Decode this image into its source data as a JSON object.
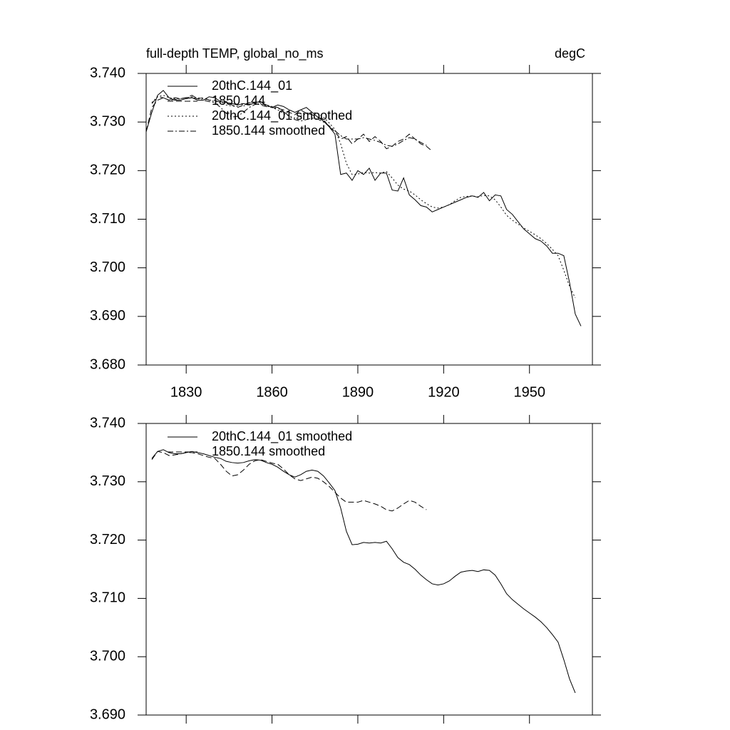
{
  "chart_data": [
    {
      "type": "line",
      "title": "full-depth TEMP, global_no_ms",
      "units": "degC",
      "x": [
        1816,
        1818,
        1820,
        1822,
        1824,
        1826,
        1828,
        1830,
        1832,
        1834,
        1836,
        1838,
        1840,
        1842,
        1844,
        1846,
        1848,
        1850,
        1852,
        1854,
        1856,
        1858,
        1860,
        1862,
        1864,
        1866,
        1868,
        1870,
        1872,
        1874,
        1876,
        1878,
        1880,
        1882,
        1884,
        1886,
        1888,
        1890,
        1892,
        1894,
        1896,
        1898,
        1900,
        1902,
        1904,
        1906,
        1908,
        1910,
        1912,
        1914,
        1916,
        1918,
        1920,
        1922,
        1924,
        1926,
        1928,
        1930,
        1932,
        1934,
        1936,
        1938,
        1940,
        1942,
        1944,
        1946,
        1948,
        1950,
        1952,
        1954,
        1956,
        1958,
        1960,
        1962,
        1964,
        1966,
        1968
      ],
      "xlim": [
        1816,
        1972
      ],
      "xticks": [
        1830,
        1860,
        1890,
        1920,
        1950
      ],
      "show_xtick_labels": true,
      "ylim": [
        3.68,
        3.74
      ],
      "yticks": [
        {
          "value": 3.68,
          "label": "3.680"
        },
        {
          "value": 3.69,
          "label": "3.690"
        },
        {
          "value": 3.7,
          "label": "3.700"
        },
        {
          "value": 3.71,
          "label": "3.710"
        },
        {
          "value": 3.72,
          "label": "3.720"
        },
        {
          "value": 3.73,
          "label": "3.730"
        },
        {
          "value": 3.74,
          "label": "3.740"
        }
      ],
      "legend": "upper left",
      "series": [
        {
          "name": "20thC.144_01",
          "color": "#000000",
          "style": "solid",
          "values": [
            3.728,
            3.732,
            3.7355,
            3.7365,
            3.735,
            3.7345,
            3.7345,
            3.7348,
            3.735,
            3.7345,
            3.7345,
            3.7352,
            3.735,
            3.7342,
            3.734,
            3.7338,
            3.7335,
            3.7338,
            3.7335,
            3.734,
            3.7342,
            3.7335,
            3.733,
            3.7335,
            3.7332,
            3.7325,
            3.732,
            3.7325,
            3.733,
            3.732,
            3.731,
            3.7302,
            3.729,
            3.7275,
            3.7192,
            3.7195,
            3.718,
            3.72,
            3.7192,
            3.7205,
            3.718,
            3.7195,
            3.7195,
            3.716,
            3.7158,
            3.7185,
            3.715,
            3.714,
            3.7128,
            3.7125,
            3.7115,
            3.712,
            3.7125,
            3.713,
            3.7135,
            3.714,
            3.7145,
            3.7148,
            3.7145,
            3.7155,
            3.7138,
            3.715,
            3.7148,
            3.712,
            3.711,
            3.7095,
            3.708,
            3.707,
            3.706,
            3.7055,
            3.7045,
            3.703,
            3.703,
            3.7025,
            3.697,
            3.6905,
            3.688
          ]
        },
        {
          "name": "1850.144",
          "color": "#000000",
          "style": "dash",
          "values": [
            3.728,
            3.733,
            3.7345,
            3.735,
            3.7345,
            3.735,
            3.7348,
            3.735,
            3.7355,
            3.7348,
            3.735,
            3.7345,
            3.7345,
            3.734,
            3.7342,
            3.7335,
            3.733,
            3.7335,
            3.734,
            3.7338,
            3.7335,
            3.7332,
            3.733,
            3.7328,
            3.7325,
            3.732,
            3.7315,
            3.7325,
            3.7318,
            3.7315,
            3.731,
            3.7305,
            3.729,
            3.728,
            3.7265,
            3.727,
            3.7255,
            3.7265,
            3.7275,
            3.726,
            3.727,
            3.726,
            3.7245,
            3.725,
            3.726,
            3.7265,
            3.7275,
            3.7265,
            3.7255,
            3.725,
            3.724,
            null,
            null,
            null,
            null,
            null,
            null,
            null,
            null,
            null,
            null,
            null,
            null,
            null,
            null,
            null,
            null,
            null,
            null,
            null,
            null,
            null,
            null,
            null,
            null,
            null,
            null
          ]
        },
        {
          "name": "20thC.144_01 smoothed",
          "color": "#000000",
          "style": "dot",
          "values": [
            null,
            3.734,
            3.7352,
            3.7355,
            3.735,
            3.7348,
            3.7348,
            3.735,
            3.7352,
            3.735,
            3.7348,
            3.7345,
            3.7342,
            3.734,
            3.7335,
            3.7333,
            3.7332,
            3.7333,
            3.7336,
            3.7338,
            3.7337,
            3.7333,
            3.733,
            3.7325,
            3.7318,
            3.7312,
            3.7308,
            3.7312,
            3.7318,
            3.732,
            3.7318,
            3.731,
            3.7298,
            3.7285,
            3.7255,
            3.7215,
            3.7192,
            3.7193,
            3.7196,
            3.7195,
            3.7196,
            3.7195,
            3.7198,
            3.7185,
            3.717,
            3.7162,
            3.7158,
            3.715,
            3.714,
            3.7132,
            3.7125,
            3.7123,
            3.7125,
            3.713,
            3.7138,
            3.7145,
            3.7147,
            3.7148,
            3.7146,
            3.7149,
            3.7148,
            3.714,
            3.7125,
            3.7108,
            3.7098,
            3.709,
            3.7082,
            3.7075,
            3.7068,
            3.706,
            3.705,
            3.7038,
            3.7025,
            3.6995,
            3.6962,
            3.6938,
            null
          ]
        },
        {
          "name": "1850.144 smoothed",
          "color": "#000000",
          "style": "dashdot",
          "values": [
            null,
            3.7338,
            3.7352,
            3.735,
            3.7345,
            3.7346,
            3.7348,
            3.735,
            3.735,
            3.7348,
            3.7345,
            3.7342,
            3.734,
            3.733,
            3.7318,
            3.731,
            3.7312,
            3.732,
            3.733,
            3.7336,
            3.7338,
            3.7335,
            3.7332,
            3.733,
            3.7322,
            3.7312,
            3.7305,
            3.7302,
            3.7305,
            3.7308,
            3.7306,
            3.73,
            3.7292,
            3.7282,
            3.7272,
            3.7265,
            3.7265,
            3.7265,
            3.7268,
            3.7265,
            3.7262,
            3.7258,
            3.7252,
            3.725,
            3.7255,
            3.7262,
            3.7268,
            3.7265,
            3.7258,
            3.7252,
            null,
            null,
            null,
            null,
            null,
            null,
            null,
            null,
            null,
            null,
            null,
            null,
            null,
            null,
            null,
            null,
            null,
            null,
            null,
            null,
            null,
            null,
            null,
            null,
            null,
            null,
            null
          ]
        }
      ]
    },
    {
      "type": "line",
      "x": [
        1818,
        1820,
        1822,
        1824,
        1826,
        1828,
        1830,
        1832,
        1834,
        1836,
        1838,
        1840,
        1842,
        1844,
        1846,
        1848,
        1850,
        1852,
        1854,
        1856,
        1858,
        1860,
        1862,
        1864,
        1866,
        1868,
        1870,
        1872,
        1874,
        1876,
        1878,
        1880,
        1882,
        1884,
        1886,
        1888,
        1890,
        1892,
        1894,
        1896,
        1898,
        1900,
        1902,
        1904,
        1906,
        1908,
        1910,
        1912,
        1914,
        1916,
        1918,
        1920,
        1922,
        1924,
        1926,
        1928,
        1930,
        1932,
        1934,
        1936,
        1938,
        1940,
        1942,
        1944,
        1946,
        1948,
        1950,
        1952,
        1954,
        1956,
        1958,
        1960,
        1962,
        1964,
        1966
      ],
      "xlim": [
        1816,
        1972
      ],
      "xticks": [
        1830,
        1860,
        1890,
        1920,
        1950
      ],
      "show_xtick_labels": false,
      "ylim": [
        3.69,
        3.74
      ],
      "yticks": [
        {
          "value": 3.69,
          "label": "3.690"
        },
        {
          "value": 3.7,
          "label": "3.700"
        },
        {
          "value": 3.71,
          "label": "3.710"
        },
        {
          "value": 3.72,
          "label": "3.720"
        },
        {
          "value": 3.73,
          "label": "3.730"
        },
        {
          "value": 3.74,
          "label": "3.740"
        }
      ],
      "legend": "upper left",
      "series": [
        {
          "name": "20thC.144_01 smoothed",
          "color": "#000000",
          "style": "solid",
          "values": [
            3.734,
            3.7352,
            3.7355,
            3.735,
            3.7348,
            3.7348,
            3.735,
            3.7352,
            3.735,
            3.7348,
            3.7345,
            3.7342,
            3.734,
            3.7335,
            3.7333,
            3.7332,
            3.7333,
            3.7336,
            3.7338,
            3.7337,
            3.7333,
            3.733,
            3.7325,
            3.7318,
            3.7312,
            3.7308,
            3.7312,
            3.7318,
            3.732,
            3.7318,
            3.731,
            3.7298,
            3.7285,
            3.7255,
            3.7215,
            3.7192,
            3.7193,
            3.7196,
            3.7195,
            3.7196,
            3.7195,
            3.7198,
            3.7185,
            3.717,
            3.7162,
            3.7158,
            3.715,
            3.714,
            3.7132,
            3.7125,
            3.7123,
            3.7125,
            3.713,
            3.7138,
            3.7145,
            3.7147,
            3.7148,
            3.7146,
            3.7149,
            3.7148,
            3.714,
            3.7125,
            3.7108,
            3.7098,
            3.709,
            3.7082,
            3.7075,
            3.7068,
            3.706,
            3.705,
            3.7038,
            3.7025,
            3.6995,
            3.6962,
            3.6938
          ]
        },
        {
          "name": "1850.144 smoothed",
          "color": "#000000",
          "style": "dash",
          "values": [
            3.7338,
            3.7352,
            3.735,
            3.7345,
            3.7346,
            3.7348,
            3.735,
            3.735,
            3.7348,
            3.7345,
            3.7342,
            3.734,
            3.733,
            3.7318,
            3.731,
            3.7312,
            3.732,
            3.733,
            3.7336,
            3.7338,
            3.7335,
            3.7332,
            3.733,
            3.7322,
            3.7312,
            3.7305,
            3.7302,
            3.7305,
            3.7308,
            3.7306,
            3.73,
            3.7292,
            3.7282,
            3.7272,
            3.7265,
            3.7265,
            3.7265,
            3.7268,
            3.7265,
            3.7262,
            3.7258,
            3.7252,
            3.725,
            3.7255,
            3.7262,
            3.7268,
            3.7265,
            3.7258,
            3.7252,
            null,
            null,
            null,
            null,
            null,
            null,
            null,
            null,
            null,
            null,
            null,
            null,
            null,
            null,
            null,
            null,
            null,
            null,
            null,
            null,
            null,
            null,
            null,
            null,
            null,
            null
          ]
        }
      ]
    }
  ]
}
